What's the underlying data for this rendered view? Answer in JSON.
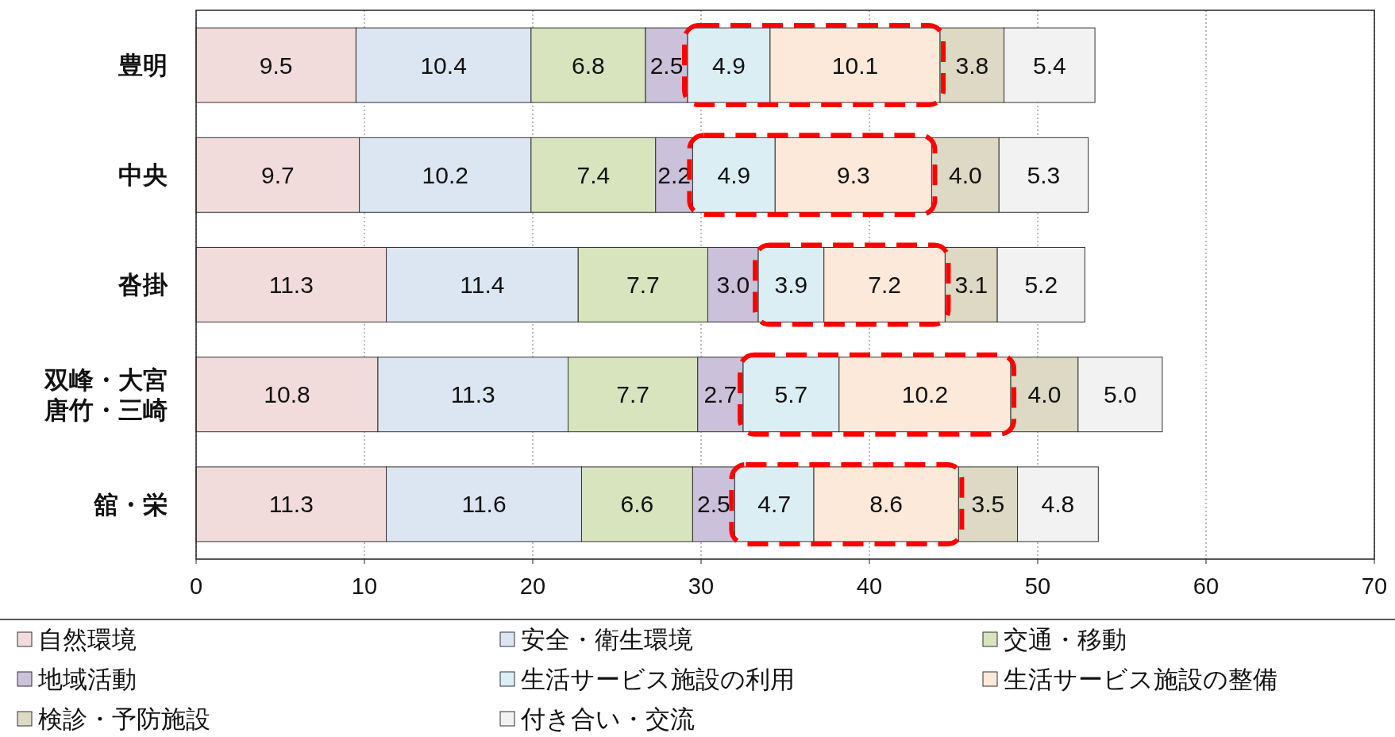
{
  "chart_data": {
    "type": "bar",
    "orientation": "horizontal",
    "stacked": true,
    "data_labels": true,
    "grid": "x",
    "legend": "bottom",
    "categories": [
      "豊明",
      "中央",
      "沓掛",
      "双峰・大宮唐竹・三崎",
      "舘・栄"
    ],
    "xlim": [
      0,
      70
    ],
    "xticks": [
      0,
      10,
      20,
      30,
      40,
      50,
      60,
      70
    ],
    "series": [
      {
        "name": "自然環境",
        "color": "#f2dcdb",
        "values": [
          9.5,
          9.7,
          11.3,
          10.8,
          11.3
        ]
      },
      {
        "name": "安全・衛生環境",
        "color": "#dce6f2",
        "values": [
          10.4,
          10.2,
          11.4,
          11.3,
          11.6
        ]
      },
      {
        "name": "交通・移動",
        "color": "#d7e4bd",
        "values": [
          6.8,
          7.4,
          7.7,
          7.7,
          6.6
        ]
      },
      {
        "name": "地域活動",
        "color": "#ccc1da",
        "values": [
          2.5,
          2.2,
          3.0,
          2.7,
          2.5
        ],
        "value_labels": [
          "2.5",
          "2.2",
          "3.0",
          "2.7",
          "2.5"
        ]
      },
      {
        "name": "生活サービス施設の利用",
        "color": "#dbeef4",
        "values": [
          4.9,
          4.9,
          3.9,
          5.7,
          4.7
        ]
      },
      {
        "name": "生活サービス施設の整備",
        "color": "#fde9d9",
        "values": [
          10.1,
          9.3,
          7.2,
          10.2,
          8.6
        ]
      },
      {
        "name": "検診・予防施設",
        "color": "#ddd9c4",
        "values": [
          3.8,
          4.0,
          3.1,
          4.0,
          3.5
        ],
        "value_labels": [
          "3.8",
          "4.0",
          "3.1",
          "4.0",
          "3.5"
        ]
      },
      {
        "name": "付き合い・交流",
        "color": "#f2f2f2",
        "values": [
          5.4,
          5.3,
          5.2,
          5.0,
          4.8
        ],
        "value_labels": [
          "5.4",
          "5.3",
          "5.2",
          "5.0",
          "4.8"
        ]
      }
    ]
  }
}
